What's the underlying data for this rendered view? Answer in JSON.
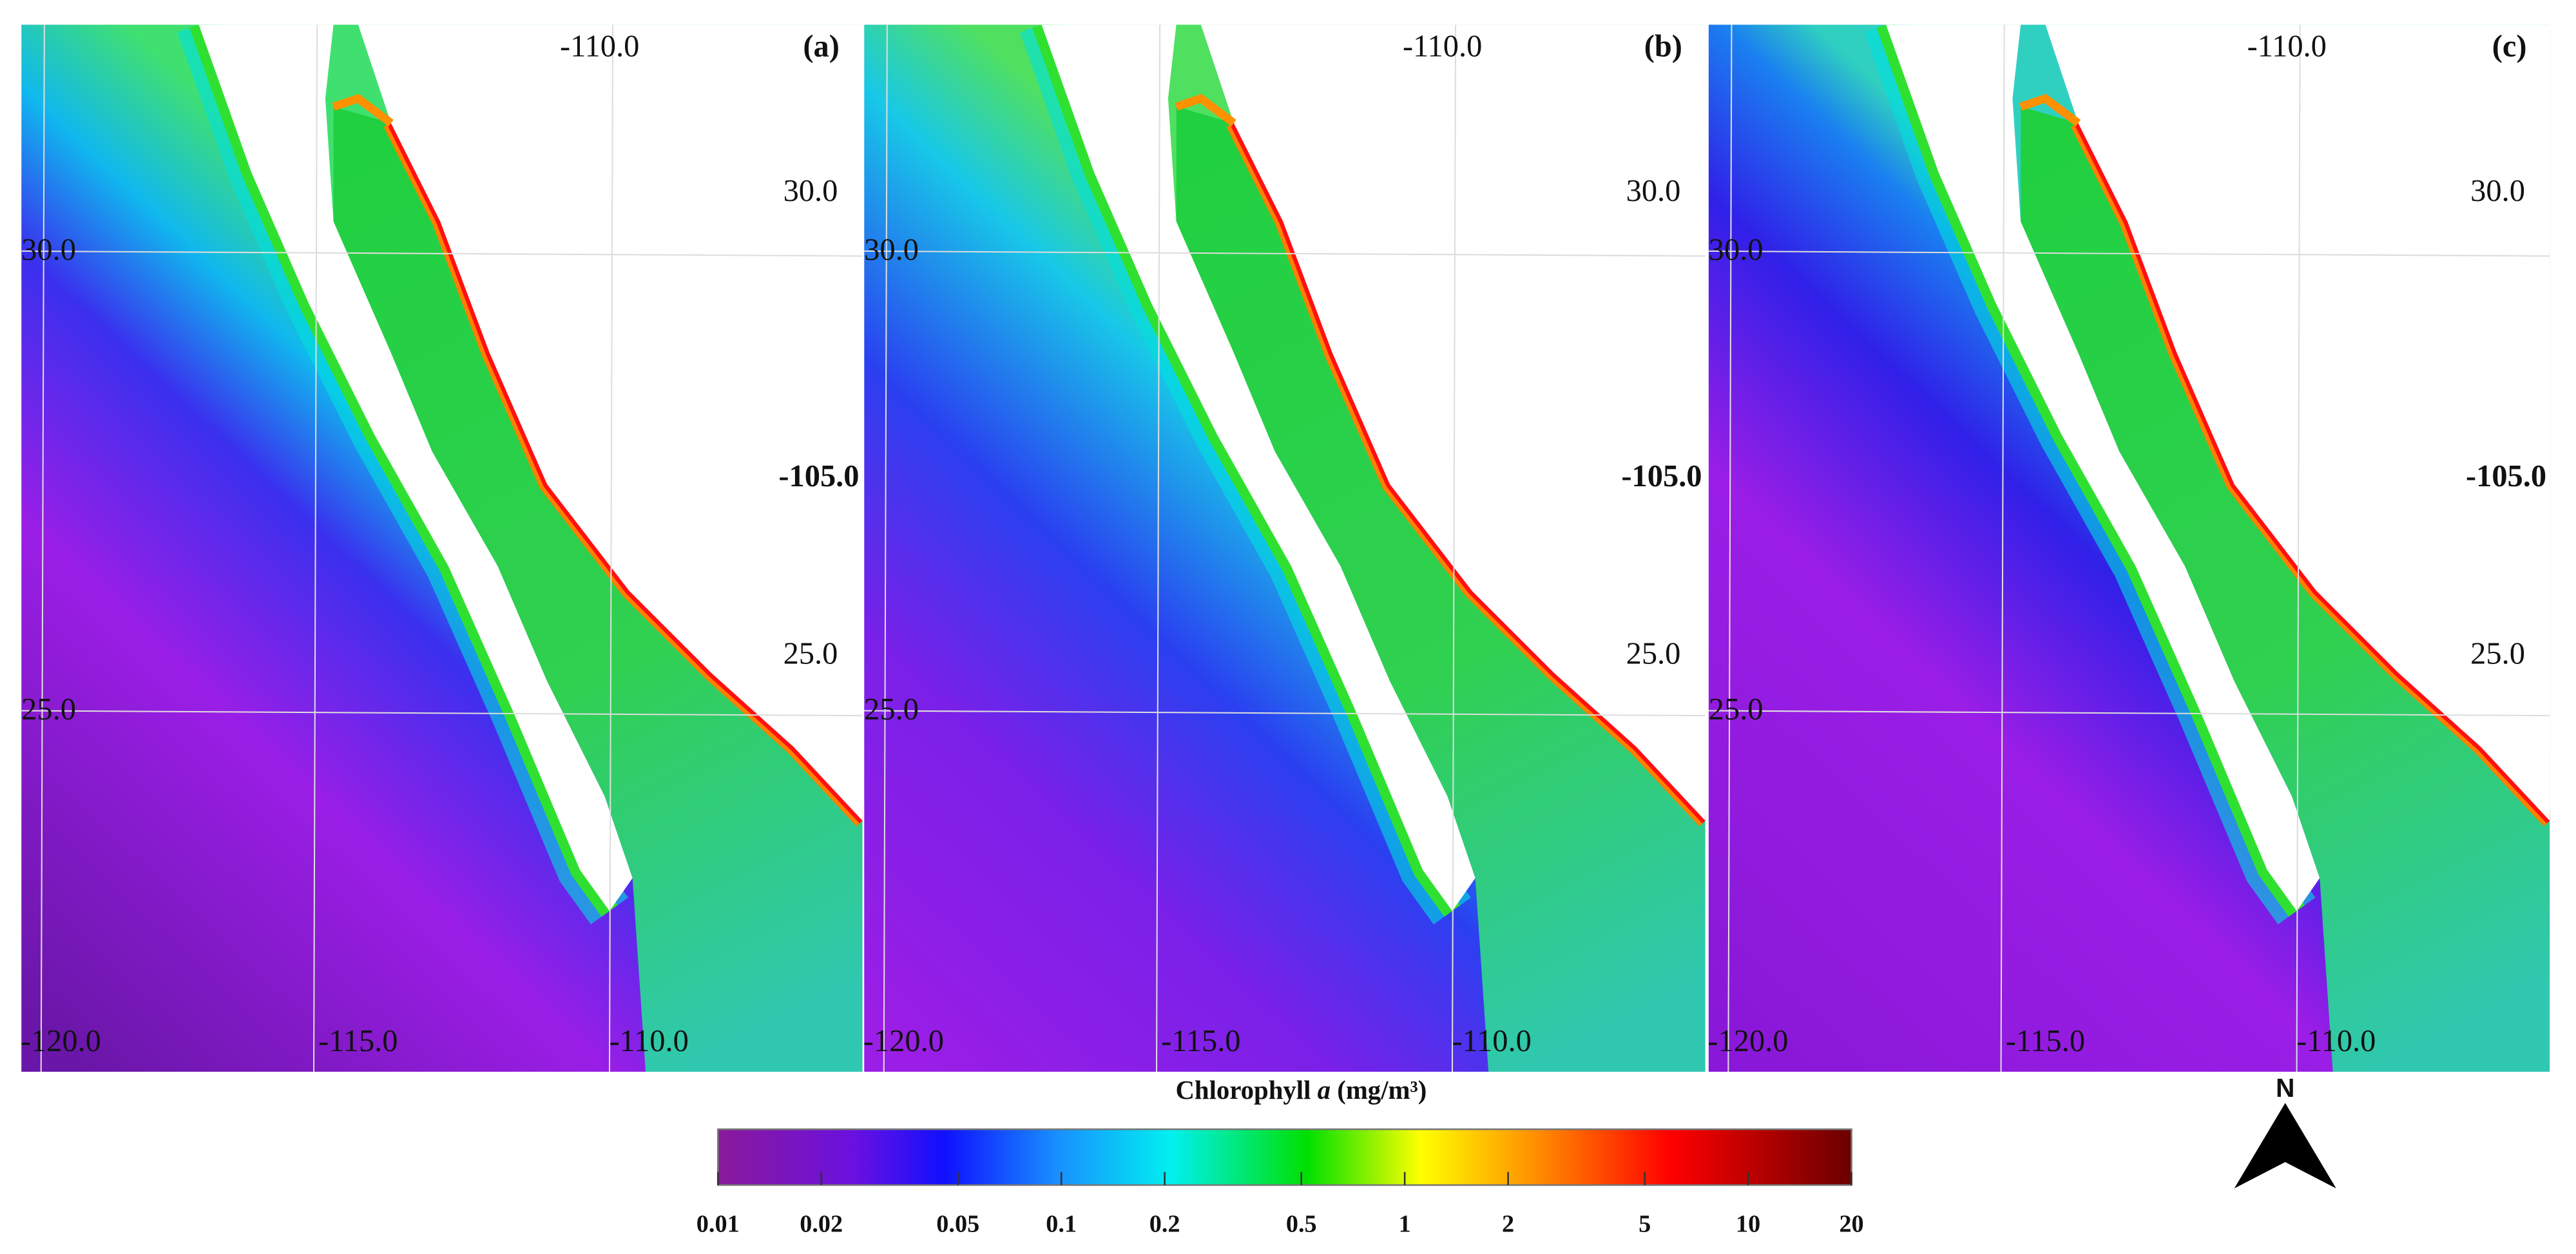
{
  "panels": [
    {
      "label": "(a)",
      "top_lon": "-110.0",
      "right_lat_top": "30.0",
      "right_lon": "-105.0",
      "right_lat_bottom": "25.0",
      "left_lat_top": "30.0",
      "left_lat_bottom": "25.0",
      "bottom_lons": [
        "-120.0",
        "-115.0",
        "-110.0"
      ]
    },
    {
      "label": "(b)",
      "top_lon": "-110.0",
      "right_lat_top": "30.0",
      "right_lon": "-105.0",
      "right_lat_bottom": "25.0",
      "left_lat_top": "30.0",
      "left_lat_bottom": "25.0",
      "bottom_lons": [
        "-120.0",
        "-115.0",
        "-110.0"
      ]
    },
    {
      "label": "(c)",
      "top_lon": "-110.0",
      "right_lat_top": "30.0",
      "right_lon": "-105.0",
      "right_lat_bottom": "25.0",
      "left_lat_top": "30.0",
      "left_lat_bottom": "25.0",
      "bottom_lons": [
        "-120.0",
        "-115.0",
        "-110.0"
      ]
    }
  ],
  "colorbar": {
    "title": "Chlorophyll ",
    "title_italic": "a",
    "title_unit": " (mg/m³)",
    "scale": "log",
    "range": [
      0.01,
      20
    ],
    "ticks": [
      0.01,
      0.02,
      0.05,
      0.1,
      0.2,
      0.5,
      1,
      2,
      5,
      10,
      20
    ]
  },
  "north_arrow": {
    "label": "N"
  }
}
